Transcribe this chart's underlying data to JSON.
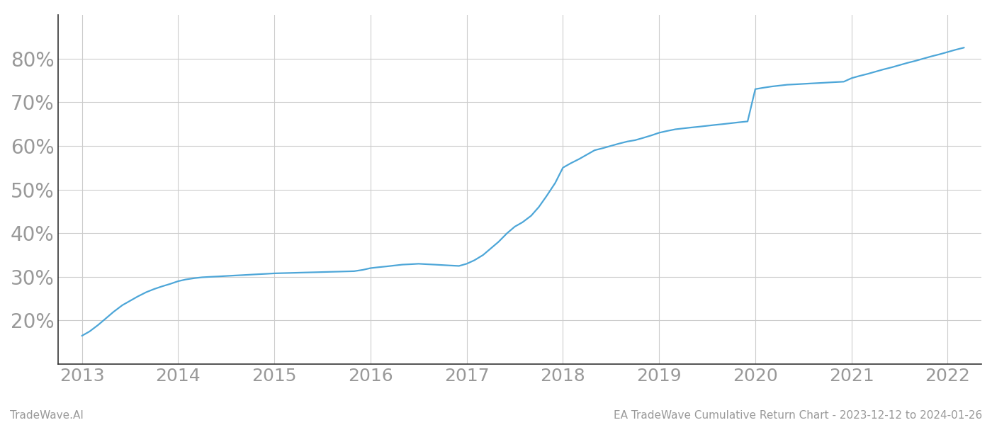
{
  "x_values": [
    2013.0,
    2013.08,
    2013.17,
    2013.25,
    2013.33,
    2013.42,
    2013.5,
    2013.58,
    2013.67,
    2013.75,
    2013.83,
    2013.92,
    2014.0,
    2014.08,
    2014.17,
    2014.25,
    2014.33,
    2014.42,
    2014.5,
    2014.58,
    2014.67,
    2014.75,
    2014.83,
    2014.92,
    2015.0,
    2015.08,
    2015.17,
    2015.25,
    2015.33,
    2015.42,
    2015.5,
    2015.58,
    2015.67,
    2015.75,
    2015.83,
    2015.92,
    2016.0,
    2016.08,
    2016.17,
    2016.25,
    2016.33,
    2016.42,
    2016.5,
    2016.58,
    2016.67,
    2016.75,
    2016.83,
    2016.92,
    2017.0,
    2017.08,
    2017.17,
    2017.25,
    2017.33,
    2017.42,
    2017.5,
    2017.58,
    2017.67,
    2017.75,
    2017.83,
    2017.92,
    2018.0,
    2018.08,
    2018.17,
    2018.25,
    2018.33,
    2018.42,
    2018.5,
    2018.58,
    2018.67,
    2018.75,
    2018.83,
    2018.92,
    2019.0,
    2019.08,
    2019.17,
    2019.25,
    2019.33,
    2019.42,
    2019.5,
    2019.58,
    2019.67,
    2019.75,
    2019.83,
    2019.92,
    2020.0,
    2020.08,
    2020.17,
    2020.25,
    2020.33,
    2020.42,
    2020.5,
    2020.58,
    2020.67,
    2020.75,
    2020.83,
    2020.92,
    2021.0,
    2021.08,
    2021.17,
    2021.25,
    2021.33,
    2021.42,
    2021.5,
    2021.58,
    2021.67,
    2021.75,
    2021.83,
    2021.92,
    2022.0,
    2022.08,
    2022.17
  ],
  "y_values": [
    16.5,
    17.5,
    19.0,
    20.5,
    22.0,
    23.5,
    24.5,
    25.5,
    26.5,
    27.2,
    27.8,
    28.4,
    29.0,
    29.4,
    29.7,
    29.9,
    30.0,
    30.1,
    30.2,
    30.3,
    30.4,
    30.5,
    30.6,
    30.7,
    30.8,
    30.85,
    30.9,
    30.95,
    31.0,
    31.05,
    31.1,
    31.15,
    31.2,
    31.25,
    31.3,
    31.6,
    32.0,
    32.2,
    32.4,
    32.6,
    32.8,
    32.9,
    33.0,
    32.9,
    32.8,
    32.7,
    32.6,
    32.5,
    33.0,
    33.8,
    35.0,
    36.5,
    38.0,
    40.0,
    41.5,
    42.5,
    44.0,
    46.0,
    48.5,
    51.5,
    55.0,
    56.0,
    57.0,
    58.0,
    59.0,
    59.5,
    60.0,
    60.5,
    61.0,
    61.3,
    61.8,
    62.4,
    63.0,
    63.4,
    63.8,
    64.0,
    64.2,
    64.4,
    64.6,
    64.8,
    65.0,
    65.2,
    65.4,
    65.6,
    73.0,
    73.3,
    73.6,
    73.8,
    74.0,
    74.1,
    74.2,
    74.3,
    74.4,
    74.5,
    74.6,
    74.7,
    75.5,
    76.0,
    76.5,
    77.0,
    77.5,
    78.0,
    78.5,
    79.0,
    79.5,
    80.0,
    80.5,
    81.0,
    81.5,
    82.0,
    82.5
  ],
  "line_color": "#4da6d8",
  "line_width": 1.6,
  "background_color": "#ffffff",
  "grid_color": "#cccccc",
  "ytick_labels": [
    "20%",
    "30%",
    "40%",
    "50%",
    "60%",
    "70%",
    "80%"
  ],
  "ytick_values": [
    20,
    30,
    40,
    50,
    60,
    70,
    80
  ],
  "ylim": [
    10,
    90
  ],
  "xlim": [
    2012.75,
    2022.35
  ],
  "xtick_values": [
    2013,
    2014,
    2015,
    2016,
    2017,
    2018,
    2019,
    2020,
    2021,
    2022
  ],
  "footer_left": "TradeWave.AI",
  "footer_right": "EA TradeWave Cumulative Return Chart - 2023-12-12 to 2024-01-26",
  "footer_color": "#999999",
  "footer_fontsize": 11,
  "tick_color": "#999999",
  "ytick_fontsize": 20,
  "xtick_fontsize": 18,
  "spine_color": "#333333",
  "left_spine_color": "#333333"
}
